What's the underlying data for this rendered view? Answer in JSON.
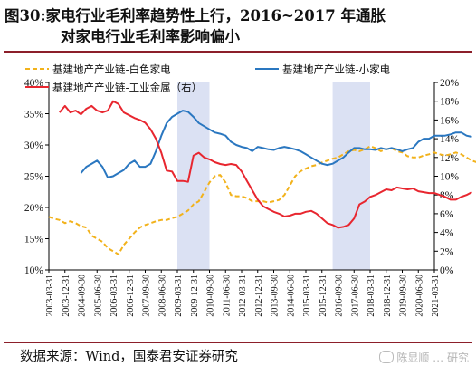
{
  "title": {
    "line1": "图30:家电行业毛利率趋势性上行，2016~2017 年通胀",
    "line2": "对家电行业毛利率影响偏小"
  },
  "source": "数据来源：Wind，国泰君安证券研究",
  "watermark": "陈显顺 … 研究",
  "chart_data": {
    "type": "line",
    "left_axis": {
      "min": 10,
      "max": 40,
      "step": 5,
      "ticks": [
        "10%",
        "15%",
        "20%",
        "25%",
        "30%",
        "35%",
        "40%"
      ]
    },
    "right_axis": {
      "min": 0,
      "max": 20,
      "step": 2,
      "ticks": [
        "0%",
        "2%",
        "4%",
        "6%",
        "8%",
        "10%",
        "12%",
        "14%",
        "16%",
        "18%",
        "20%"
      ]
    },
    "x_labels": [
      "2003-03-31",
      "2003-12-31",
      "2004-09-30",
      "2005-06-30",
      "2006-03-31",
      "2006-12-31",
      "2007-09-30",
      "2008-06-30",
      "2009-03-31",
      "2009-12-31",
      "2010-09-30",
      "2011-06-30",
      "2012-03-31",
      "2012-12-31",
      "2013-09-30",
      "2014-06-30",
      "2015-03-31",
      "2015-12-31",
      "2016-09-30",
      "2017-06-30",
      "2018-03-31",
      "2018-12-31",
      "2019-09-30",
      "2020-06-30",
      "2021-03-31"
    ],
    "shaded_periods": [
      [
        "2009-03-31",
        "2010-09-30"
      ],
      [
        "2016-06-30",
        "2018-03-31"
      ]
    ],
    "shade_color": "#dbe1f3",
    "legend": {
      "white_goods": "基建地产产业链-白色家电",
      "small_appliances": "基建地产产业链-小家电",
      "industrial_metals": "基建地产产业链-工业金属（右）"
    },
    "series": [
      {
        "key": "white_goods",
        "axis": "left",
        "color": "#f2b21b",
        "style": "dashed",
        "start": "2003-03",
        "step_months": 3,
        "values": [
          18.5,
          18.2,
          18,
          17.5,
          17.8,
          17.5,
          17,
          16.8,
          15.5,
          15,
          14.5,
          13.5,
          13,
          12.5,
          14,
          15,
          16,
          16.8,
          17.2,
          17.5,
          17.8,
          18,
          18,
          18.3,
          18.5,
          19,
          19.5,
          20.5,
          21,
          22.5,
          24,
          25,
          25.2,
          24,
          22,
          21.8,
          21.8,
          21.5,
          21,
          21,
          21,
          20.8,
          21,
          21.2,
          22,
          23.5,
          25,
          25.8,
          26.2,
          26.6,
          26.8,
          27.2,
          27.5,
          27.8,
          28,
          28.5,
          29,
          29.2,
          29,
          29.3,
          29.8,
          29.5,
          29,
          29.3,
          29.5,
          29,
          28.8,
          28.2,
          28,
          28,
          28.3,
          28.5,
          28.8,
          28.5,
          28.3,
          28.5,
          28.8,
          28.5,
          28,
          27.5,
          27.2,
          26.5,
          26.8,
          27,
          26.7
        ]
      },
      {
        "key": "small_appliances",
        "axis": "left",
        "color": "#2a77c0",
        "style": "solid",
        "start": "2004-09",
        "step_months": 3,
        "values": [
          25.5,
          26.5,
          27,
          27.5,
          26.5,
          24.8,
          25,
          25.5,
          26,
          27,
          27.5,
          26.5,
          26.5,
          27,
          29,
          31.5,
          33.5,
          34.5,
          35,
          35.5,
          35.3,
          34.5,
          33.5,
          33,
          32.5,
          32,
          31.8,
          31.5,
          30.5,
          30,
          29.7,
          29.5,
          29,
          29.7,
          29.5,
          29.3,
          29.2,
          29.5,
          29.7,
          29.5,
          29.3,
          29,
          28.5,
          28,
          27.5,
          27,
          26.8,
          27,
          27.5,
          28,
          28.8,
          29.5,
          29.5,
          29.3,
          29.3,
          29.2,
          29.5,
          29.3,
          29.5,
          29.3,
          29,
          29.3,
          29.5,
          30.5,
          31,
          31,
          31.5,
          31.5,
          31.5,
          31.7,
          32,
          32,
          31.5,
          31.3
        ]
      },
      {
        "key": "industrial_metals",
        "axis": "right",
        "color": "#e8262f",
        "style": "solid",
        "start": "2003-09",
        "step_months": 3,
        "values": [
          16.8,
          17.5,
          16.8,
          17,
          16.6,
          17.2,
          17.5,
          17,
          16.8,
          17,
          18,
          17.7,
          16.8,
          16.5,
          16.2,
          16,
          15.7,
          15,
          14,
          12.5,
          10.6,
          10.5,
          9.5,
          9.5,
          9.4,
          12.2,
          12.5,
          12,
          11.8,
          11.5,
          11.3,
          11.2,
          11.3,
          11.2,
          10.5,
          9.5,
          8.5,
          7.5,
          6.8,
          6.5,
          6.2,
          6,
          5.7,
          5.8,
          6,
          6,
          6.2,
          6.3,
          6,
          5.5,
          5,
          4.8,
          4.5,
          4.6,
          4.8,
          5.5,
          7,
          7.3,
          7.8,
          8,
          8.3,
          8.6,
          8.5,
          8.8,
          8.7,
          8.6,
          8.7,
          8.4,
          8.3,
          8.2,
          8.2,
          8,
          7.8,
          7.5,
          7.5,
          7.8,
          8,
          8.3
        ]
      }
    ]
  }
}
